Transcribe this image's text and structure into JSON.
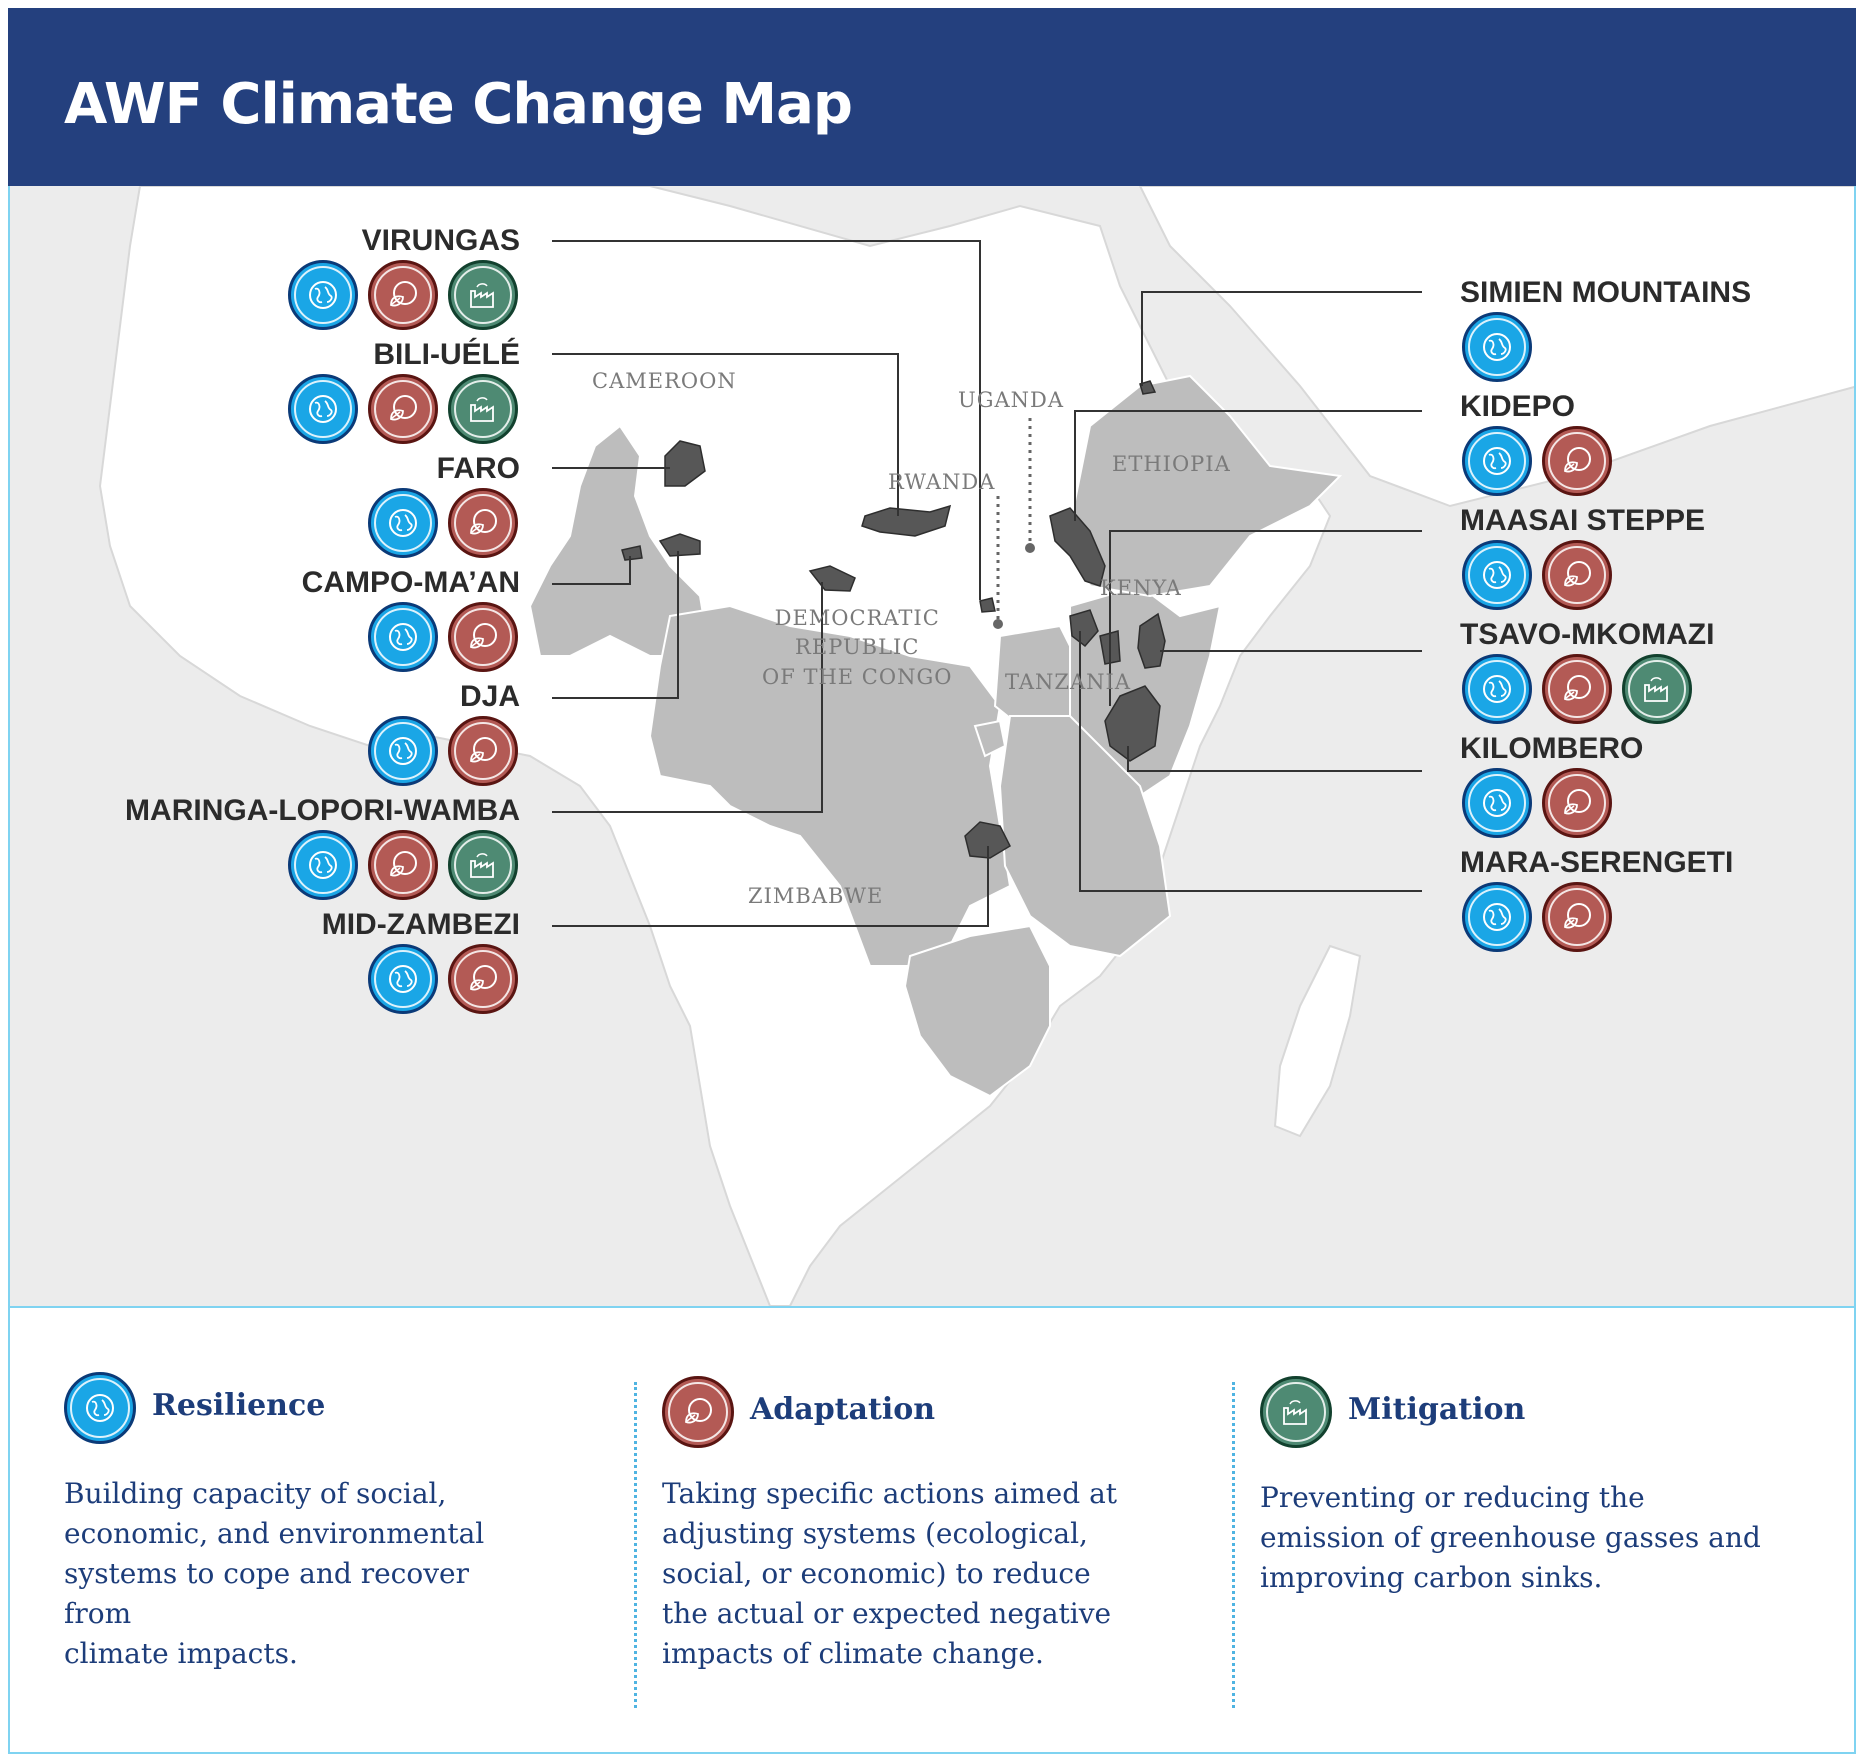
{
  "header": {
    "title": "AWF Climate Change Map"
  },
  "colors": {
    "header_bg": "#24407e",
    "resilience": "#1aa6e6",
    "adaptation": "#b35a55",
    "mitigation": "#4e8a73",
    "legend_text": "#1d3d7a"
  },
  "countries": {
    "cameroon": "CAMEROON",
    "uganda": "UGANDA",
    "rwanda": "RWANDA",
    "ethiopia": "ETHIOPIA",
    "kenya": "KENYA",
    "drc_line1": "DEMOCRATIC",
    "drc_line2": "REPUBLIC",
    "drc_line3": "OF THE CONGO",
    "tanzania": "TANZANIA",
    "zimbabwe": "ZIMBABWE"
  },
  "sites_left": [
    {
      "name": "VIRUNGAS",
      "icons": [
        "resilience",
        "adaptation",
        "mitigation"
      ]
    },
    {
      "name": "BILI-UÉLÉ",
      "icons": [
        "resilience",
        "adaptation",
        "mitigation"
      ]
    },
    {
      "name": "FARO",
      "icons": [
        "resilience",
        "adaptation"
      ]
    },
    {
      "name": "CAMPO-MA’AN",
      "icons": [
        "resilience",
        "adaptation"
      ]
    },
    {
      "name": "DJA",
      "icons": [
        "resilience",
        "adaptation"
      ]
    },
    {
      "name": "MARINGA-LOPORI-WAMBA",
      "icons": [
        "resilience",
        "adaptation",
        "mitigation"
      ]
    },
    {
      "name": "MID-ZAMBEZI",
      "icons": [
        "resilience",
        "adaptation"
      ]
    }
  ],
  "sites_right": [
    {
      "name": "SIMIEN MOUNTAINS",
      "icons": [
        "resilience"
      ]
    },
    {
      "name": "KIDEPO",
      "icons": [
        "resilience",
        "adaptation"
      ]
    },
    {
      "name": "MAASAI STEPPE",
      "icons": [
        "resilience",
        "adaptation"
      ]
    },
    {
      "name": "TSAVO-MKOMAZI",
      "icons": [
        "resilience",
        "adaptation",
        "mitigation"
      ]
    },
    {
      "name": "KILOMBERO",
      "icons": [
        "resilience",
        "adaptation"
      ]
    },
    {
      "name": "MARA-SERENGETI",
      "icons": [
        "resilience",
        "adaptation"
      ]
    }
  ],
  "legend": {
    "resilience": {
      "title": "Resilience",
      "icon": "globe-hands-icon",
      "lines": [
        "Building capacity of social,",
        "economic, and environmental",
        "systems to cope and recover from",
        "climate impacts."
      ]
    },
    "adaptation": {
      "title": "Adaptation",
      "icon": "leaf-globe-icon",
      "lines": [
        "Taking specific actions aimed at",
        "adjusting systems (ecological,",
        "social, or economic) to reduce",
        "the actual or expected negative",
        "impacts of climate change."
      ]
    },
    "mitigation": {
      "title": "Mitigation",
      "icon": "factory-icon",
      "lines": [
        "Preventing or reducing the",
        "emission of greenhouse gasses and",
        "improving carbon sinks."
      ]
    }
  }
}
